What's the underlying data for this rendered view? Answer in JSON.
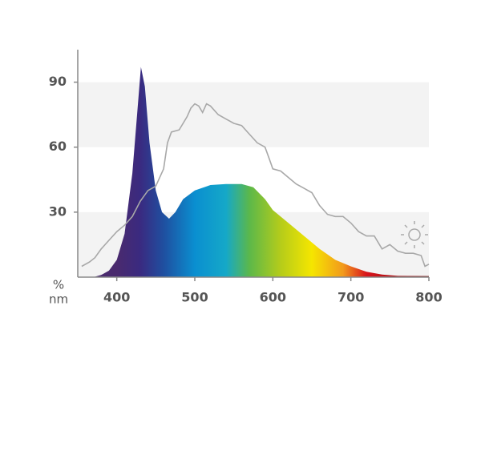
{
  "chart_data": {
    "type": "area",
    "x_label": "nm",
    "y_label": "%",
    "xlim": [
      350,
      800
    ],
    "ylim": [
      0,
      105
    ],
    "xticks": [
      400,
      500,
      600,
      700,
      800
    ],
    "yticks": [
      30,
      60,
      90
    ],
    "grid": "bands",
    "series": [
      {
        "type": "area",
        "color": "gradient",
        "gradient_stops": [
          {
            "x": 400,
            "color": "#4a2a6e"
          },
          {
            "x": 430,
            "color": "#3a2a80"
          },
          {
            "x": 460,
            "color": "#1f4fa0"
          },
          {
            "x": 500,
            "color": "#0a8fd0"
          },
          {
            "x": 540,
            "color": "#15a8c8"
          },
          {
            "x": 570,
            "color": "#5cb84a"
          },
          {
            "x": 610,
            "color": "#b5cc1a"
          },
          {
            "x": 650,
            "color": "#f5e600"
          },
          {
            "x": 690,
            "color": "#f29a1c"
          },
          {
            "x": 720,
            "color": "#d8141c"
          },
          {
            "x": 800,
            "color": "#7a1010"
          }
        ],
        "x": [
          370,
          380,
          390,
          400,
          410,
          420,
          426,
          431,
          436,
          442,
          450,
          458,
          467,
          475,
          485,
          500,
          520,
          540,
          560,
          575,
          590,
          600,
          620,
          640,
          660,
          680,
          700,
          720,
          740,
          760,
          800
        ],
        "values": [
          0,
          1,
          3,
          8,
          20,
          48,
          75,
          97,
          88,
          62,
          40,
          30,
          27,
          30,
          36,
          40,
          42.5,
          43,
          43,
          41.5,
          36,
          31,
          25,
          19,
          13,
          8,
          5,
          2.5,
          1.2,
          0.6,
          0.5
        ]
      },
      {
        "type": "line",
        "color": "#a8a8a8",
        "x": [
          355,
          365,
          372,
          380,
          390,
          400,
          410,
          420,
          430,
          440,
          450,
          460,
          465,
          470,
          480,
          490,
          495,
          500,
          505,
          510,
          515,
          520,
          530,
          540,
          550,
          560,
          570,
          580,
          590,
          595,
          600,
          610,
          620,
          630,
          640,
          650,
          660,
          670,
          680,
          690,
          700,
          710,
          720,
          730,
          740,
          750,
          760,
          770,
          780,
          790,
          795,
          800
        ],
        "values": [
          5,
          7,
          9,
          13,
          17,
          21,
          24,
          28,
          35,
          40,
          42,
          50,
          62,
          67,
          68,
          74,
          78,
          80,
          79,
          76,
          80,
          79,
          75,
          73,
          71,
          70,
          66,
          62,
          60,
          55,
          50,
          49,
          46,
          43,
          41,
          39,
          33,
          29,
          28,
          28,
          25,
          21,
          19,
          19,
          13,
          15,
          12,
          11,
          11,
          10,
          5,
          6
        ]
      }
    ]
  }
}
